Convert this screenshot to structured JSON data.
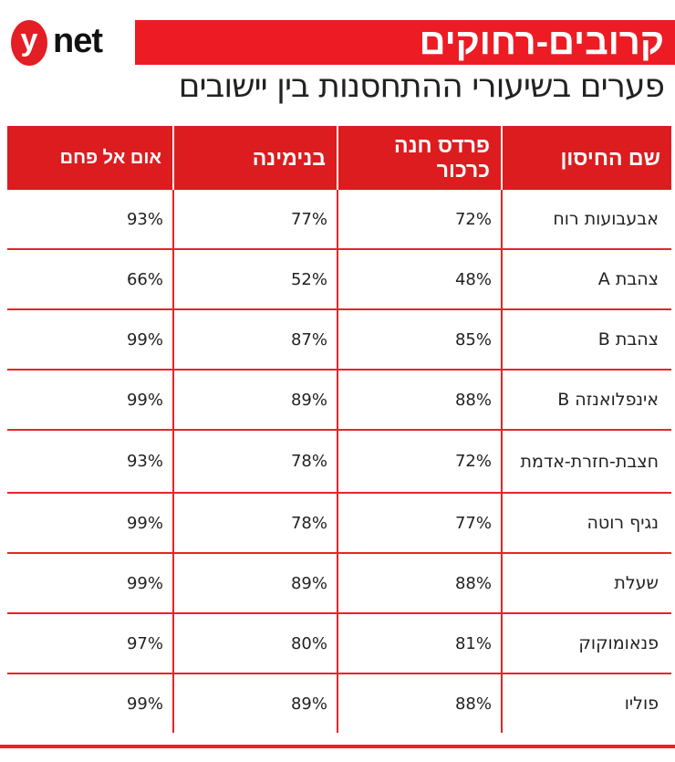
{
  "logo": {
    "letter": "y",
    "word": "net"
  },
  "title": "קרובים-רחוקים",
  "subtitle": "פערים בשיעורי ההתחסנות בין יישובים",
  "colors": {
    "brand_red": "#ed1c24",
    "header_red": "#dc1c1f"
  },
  "table": {
    "headers": [
      "שם החיסון",
      "פרדס חנה כרכור",
      "בנימינה",
      "אום אל פחם"
    ],
    "rows": [
      {
        "vaccine": "אבעבועות רוח",
        "pardes_hanna": "72%",
        "binyamina": "77%",
        "umm_al_fahm": "93%"
      },
      {
        "vaccine": "צהבת A",
        "pardes_hanna": "48%",
        "binyamina": "52%",
        "umm_al_fahm": "66%"
      },
      {
        "vaccine": "צהבת B",
        "pardes_hanna": "85%",
        "binyamina": "87%",
        "umm_al_fahm": "99%"
      },
      {
        "vaccine": "אינפלואנזה B",
        "pardes_hanna": "88%",
        "binyamina": "89%",
        "umm_al_fahm": "99%"
      },
      {
        "vaccine": "חצבת-חזרת-אדמת",
        "pardes_hanna": "72%",
        "binyamina": "78%",
        "umm_al_fahm": "93%"
      },
      {
        "vaccine": "נגיף רוטה",
        "pardes_hanna": "77%",
        "binyamina": "78%",
        "umm_al_fahm": "99%"
      },
      {
        "vaccine": "שעלת",
        "pardes_hanna": "88%",
        "binyamina": "89%",
        "umm_al_fahm": "99%"
      },
      {
        "vaccine": "פנאומוקוק",
        "pardes_hanna": "81%",
        "binyamina": "80%",
        "umm_al_fahm": "97%"
      },
      {
        "vaccine": "פוליו",
        "pardes_hanna": "88%",
        "binyamina": "89%",
        "umm_al_fahm": "99%"
      }
    ]
  }
}
